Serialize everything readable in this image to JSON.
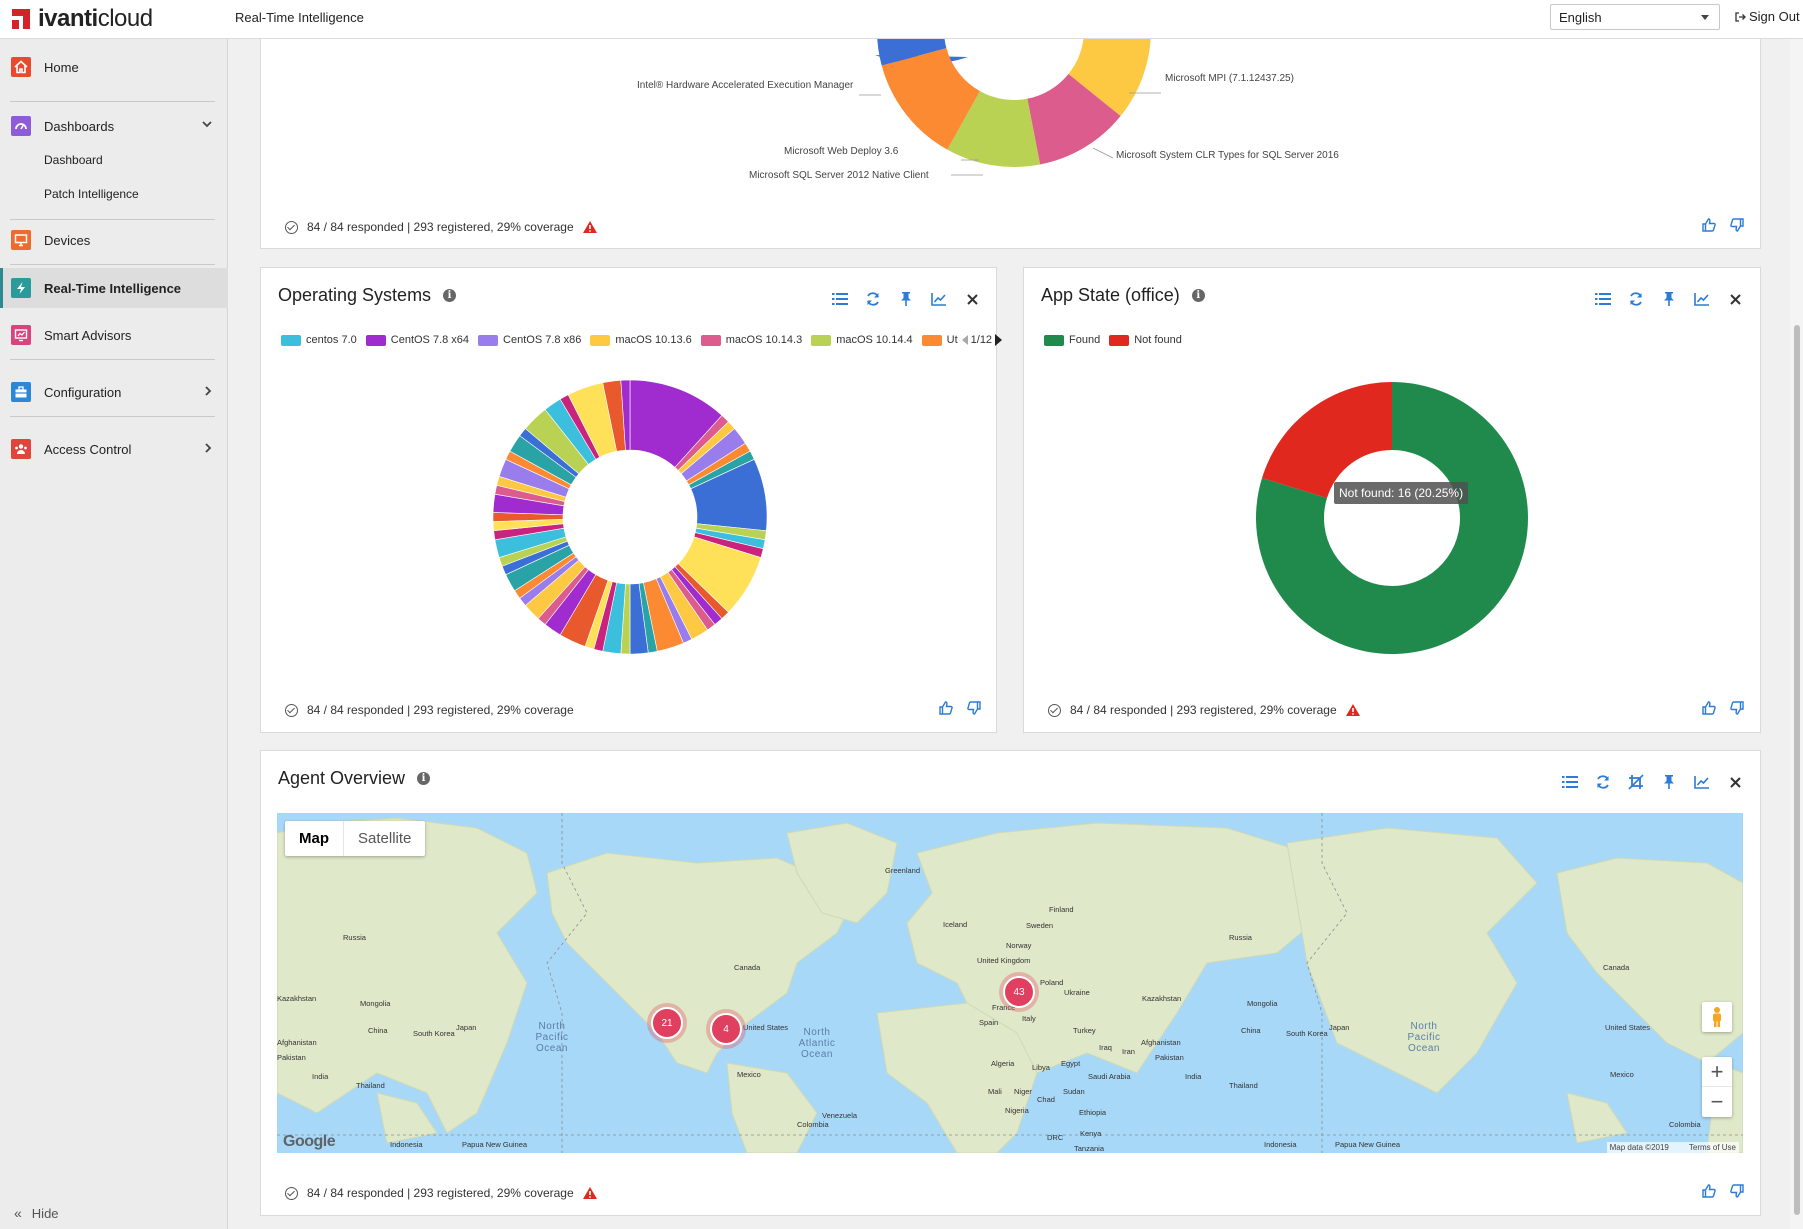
{
  "header": {
    "logo_text_bold": "ivanti",
    "logo_text": "cloud",
    "app_title": "Real-Time Intelligence",
    "language": "English",
    "sign_out": "Sign Out"
  },
  "sidebar": {
    "items": [
      {
        "label": "Home",
        "icon": "home-icon",
        "color": "#e8492f"
      },
      {
        "label": "Dashboards",
        "icon": "dashboard-icon",
        "color": "#8e5cd9"
      },
      {
        "label": "Devices",
        "icon": "monitor-icon",
        "color": "#ef6a2e"
      },
      {
        "label": "Real-Time Intelligence",
        "icon": "lightning-icon",
        "color": "#2a9a9a"
      },
      {
        "label": "Smart Advisors",
        "icon": "advisor-icon",
        "color": "#d9437e"
      },
      {
        "label": "Configuration",
        "icon": "toolbox-icon",
        "color": "#2c87d6"
      },
      {
        "label": "Access Control",
        "icon": "users-icon",
        "color": "#e0443a"
      }
    ],
    "sub_items": [
      "Dashboard",
      "Patch Intelligence"
    ],
    "hide_label": "Hide"
  },
  "top_panel": {
    "labels": [
      "Intel® Hardware Accelerated Execution Manager",
      "Microsoft MPI (7.1.12437.25)",
      "Microsoft Web Deploy 3.6",
      "Microsoft SQL Server 2012 Native Client",
      "Microsoft System CLR Types for SQL Server 2016"
    ],
    "footer": "84 / 84 responded | 293 registered, 29% coverage"
  },
  "os_panel": {
    "title": "Operating Systems",
    "legend": [
      {
        "label": "centos 7.0",
        "color": "#3bbfdc"
      },
      {
        "label": "CentOS 7.8 x64",
        "color": "#a02ccf"
      },
      {
        "label": "CentOS 7.8 x86",
        "color": "#9a7ded"
      },
      {
        "label": "macOS 10.13.6",
        "color": "#fdc943"
      },
      {
        "label": "macOS 10.14.3",
        "color": "#dc5d8d"
      },
      {
        "label": "macOS 10.14.4",
        "color": "#b9d254"
      },
      {
        "label": "Ut",
        "color": "#fb8a33"
      }
    ],
    "legend_page": "1/12",
    "footer": "84 / 84 responded | 293 registered, 29% coverage"
  },
  "app_panel": {
    "title": "App State (office)",
    "legend": [
      {
        "label": "Found",
        "color": "#1f8a4c"
      },
      {
        "label": "Not found",
        "color": "#e0281e"
      }
    ],
    "tooltip": "Not found: 16 (20.25%)",
    "footer": "84 / 84 responded | 293 registered, 29% coverage"
  },
  "agent_panel": {
    "title": "Agent Overview",
    "map_tab": "Map",
    "satellite_tab": "Satellite",
    "clusters": [
      "21",
      "4",
      "43"
    ],
    "map_labels": [
      "Greenland",
      "Iceland",
      "Finland",
      "Sweden",
      "Norway",
      "Russia",
      "Russia",
      "Canada",
      "Canada",
      "United Kingdom",
      "Poland",
      "Ukraine",
      "Kazakhstan",
      "Kazakhstan",
      "Mongolia",
      "Mongolia",
      "China",
      "China",
      "Japan",
      "Japan",
      "South Korea",
      "South Korea",
      "Afghanistan",
      "Afghanistan",
      "Pakistan",
      "Pakistan",
      "India",
      "India",
      "Thailand",
      "Thailand",
      "Indonesia",
      "Indonesia",
      "Papua New Guinea",
      "Papua New Guinea",
      "United States",
      "United States",
      "Mexico",
      "Mexico",
      "Venezuela",
      "Colombia",
      "Colombia",
      "Spain",
      "France",
      "Italy",
      "Turkey",
      "Iraq",
      "Iran",
      "Algeria",
      "Libya",
      "Egypt",
      "Saudi Arabia",
      "Mali",
      "Niger",
      "Chad",
      "Sudan",
      "Nigeria",
      "Ethiopia",
      "DRC",
      "Kenya",
      "Tanzania"
    ],
    "ocean_labels": [
      "North Pacific Ocean",
      "North Atlantic Ocean",
      "North Pacific Ocean"
    ],
    "google": "Google",
    "map_data": "Map data ©2019",
    "terms": "Terms of Use",
    "footer": "84 / 84 responded | 293 registered, 29% coverage"
  },
  "chart_data": [
    {
      "type": "pie",
      "title": "Operating Systems",
      "categories": [
        "centos 7.0",
        "CentOS 7.8 x64",
        "CentOS 7.8 x86",
        "macOS 10.13.6",
        "macOS 10.14.3",
        "macOS 10.14.4",
        "Ut"
      ],
      "values": [
        1,
        11,
        1,
        1,
        1,
        1,
        9
      ]
    },
    {
      "type": "pie",
      "title": "App State (office)",
      "categories": [
        "Found",
        "Not found"
      ],
      "values": [
        63,
        16
      ],
      "colors": [
        "#1f8a4c",
        "#e0281e"
      ]
    }
  ]
}
